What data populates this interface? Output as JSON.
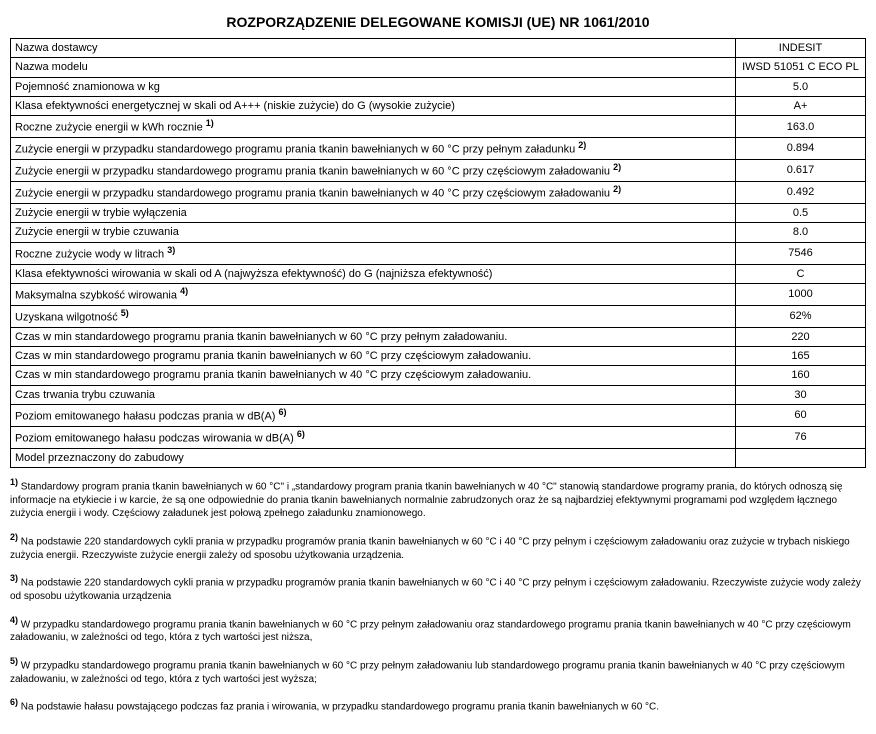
{
  "title": "ROZPORZĄDZENIE DELEGOWANE KOMISJI (UE) NR 1061/2010",
  "rows": [
    {
      "label": "Nazwa dostawcy",
      "sup": "",
      "value": "INDESIT"
    },
    {
      "label": "Nazwa modelu",
      "sup": "",
      "value": "IWSD 51051 C ECO PL"
    },
    {
      "label": "Pojemność znamionowa w kg",
      "sup": "",
      "value": "5.0"
    },
    {
      "label": "Klasa efektywności energetycznej w skali od A+++ (niskie zużycie) do G (wysokie zużycie)",
      "sup": "",
      "value": "A+"
    },
    {
      "label": "Roczne zużycie energii w kWh rocznie",
      "sup": "1)",
      "value": "163.0"
    },
    {
      "label": "Zużycie energii w przypadku standardowego programu prania tkanin bawełnianych w 60 °C przy pełnym załadunku",
      "sup": "2)",
      "value": "0.894"
    },
    {
      "label": "Zużycie energii w przypadku standardowego programu prania tkanin bawełnianych w 60 °C przy częściowym załadowaniu",
      "sup": "2)",
      "value": "0.617"
    },
    {
      "label": "Zużycie energii w przypadku standardowego programu prania tkanin bawełnianych w 40 °C przy częściowym załadowaniu",
      "sup": "2)",
      "value": "0.492"
    },
    {
      "label": "Zużycie energii w trybie wyłączenia",
      "sup": "",
      "value": "0.5"
    },
    {
      "label": "Zużycie energii w trybie czuwania",
      "sup": "",
      "value": "8.0"
    },
    {
      "label": "Roczne zużycie wody w litrach",
      "sup": "3)",
      "value": "7546"
    },
    {
      "label": "Klasa efektywności wirowania w skali od A (najwyższa efektywność) do G (najniższa efektywność)",
      "sup": "",
      "value": "C"
    },
    {
      "label": "Maksymalna szybkość wirowania",
      "sup": "4)",
      "value": "1000"
    },
    {
      "label": "Uzyskana wilgotność",
      "sup": "5)",
      "value": "62%"
    },
    {
      "label": "Czas w min standardowego programu prania tkanin bawełnianych w 60 °C przy pełnym załadowaniu.",
      "sup": "",
      "value": "220"
    },
    {
      "label": "Czas w min standardowego programu prania tkanin bawełnianych w 60 °C przy częściowym załadowaniu.",
      "sup": "",
      "value": "165"
    },
    {
      "label": "Czas w min standardowego programu prania tkanin bawełnianych w 40 °C przy częściowym załadowaniu.",
      "sup": "",
      "value": "160"
    },
    {
      "label": "Czas trwania trybu czuwania",
      "sup": "",
      "value": "30"
    },
    {
      "label": "Poziom emitowanego hałasu podczas prania w dB(A)",
      "sup": "6)",
      "value": "60"
    },
    {
      "label": "Poziom emitowanego hałasu podczas wirowania w dB(A)",
      "sup": "6)",
      "value": "76"
    },
    {
      "label": "Model przeznaczony do zabudowy",
      "sup": "",
      "value": ""
    }
  ],
  "footnotes": [
    {
      "num": "1)",
      "text": "Standardowy program prania tkanin bawełnianych w 60 °C\" i „standardowy program prania tkanin bawełnianych w 40 °C\" stanowią standardowe programy prania, do których odnoszą się informacje na etykiecie i w karcie, że są one odpowiednie do prania tkanin bawełnianych normalnie zabrudzonych oraz że są najbardziej efektywnymi programami pod względem łącznego zużycia energii i wody. Częściowy załadunek jest połową zpełnego załadunku znamionowego."
    },
    {
      "num": "2)",
      "text": "Na podstawie 220 standardowych cykli prania w przypadku programów prania tkanin bawełnianych w 60 °C i 40 °C przy pełnym i częściowym załadowaniu oraz zużycie w trybach niskiego zużycia energii. Rzeczywiste zużycie energii zależy od sposobu użytkowania urządzenia."
    },
    {
      "num": "3)",
      "text": "Na podstawie 220 standardowych cykli prania w przypadku programów prania tkanin bawełnianych w 60 °C i 40 °C przy pełnym i częściowym załadowaniu. Rzeczywiste zużycie wody zależy od sposobu użytkowania urządzenia"
    },
    {
      "num": "4)",
      "text": "W przypadku standardowego programu prania tkanin bawełnianych w 60 °C przy pełnym załadowaniu oraz standardowego programu prania tkanin bawełnianych w 40 °C przy częściowym załadowaniu, w zależności od tego, która z tych wartości jest niższa,"
    },
    {
      "num": "5)",
      "text": "W przypadku standardowego programu prania tkanin bawełnianych w 60 °C przy pełnym załadowaniu lub standardowego programu prania tkanin bawełnianych w 40 °C przy częściowym załadowaniu, w zależności od tego, która z tych wartości jest wyższa;"
    },
    {
      "num": "6)",
      "text": "Na podstawie hałasu powstającego podczas faz prania i wirowania, w przypadku standardowego programu prania tkanin bawełnianych w 60 °C."
    }
  ]
}
